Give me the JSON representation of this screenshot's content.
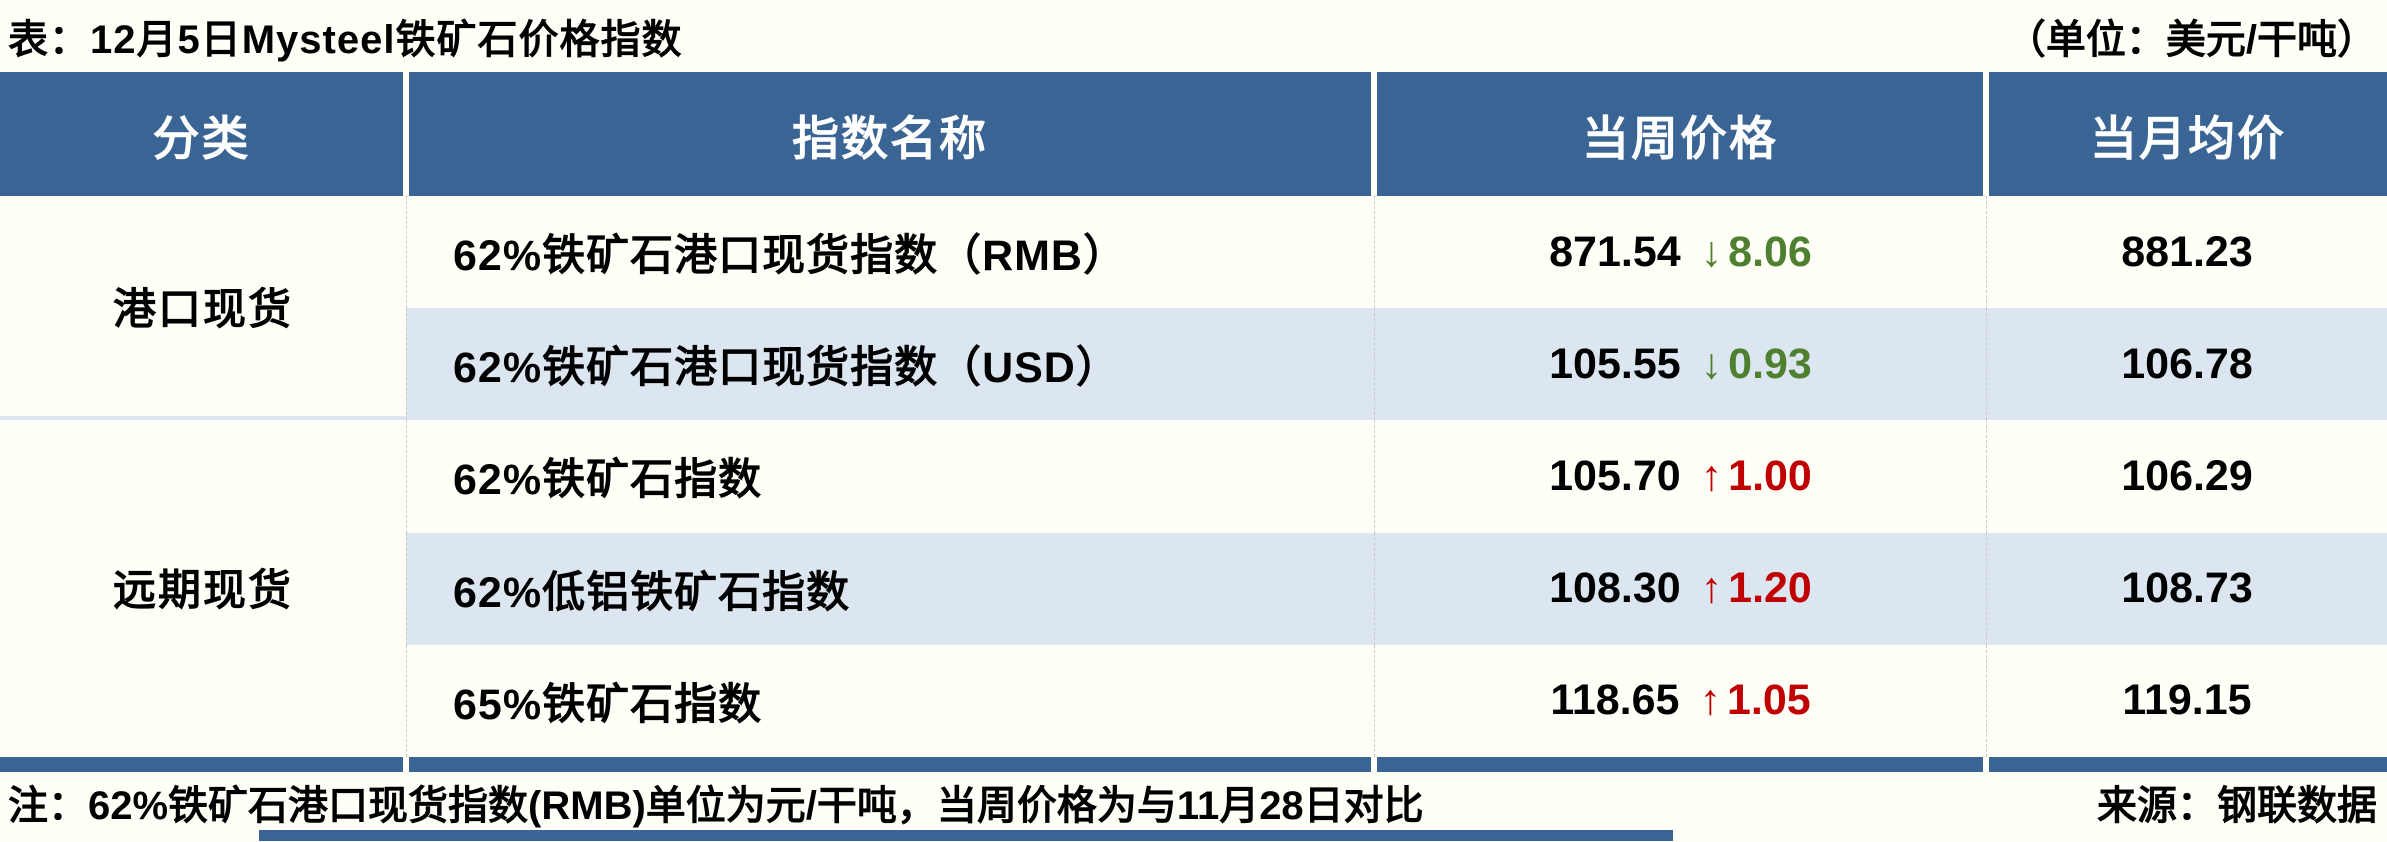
{
  "title": {
    "text": "表：12月5日Mysteel铁矿石价格指数",
    "unit": "（单位：美元/干吨）"
  },
  "table": {
    "headers": [
      "分类",
      "指数名称",
      "当周价格",
      "当月均价"
    ],
    "groups": [
      {
        "category": "港口现货",
        "rows": [
          {
            "name": "62%铁矿石港口现货指数（RMB）",
            "week_price": "871.54",
            "change": "8.06",
            "direction": "down",
            "month_avg": "881.23"
          },
          {
            "name": "62%铁矿石港口现货指数（USD）",
            "week_price": "105.55",
            "change": "0.93",
            "direction": "down",
            "month_avg": "106.78"
          }
        ]
      },
      {
        "category": "远期现货",
        "rows": [
          {
            "name": "62%铁矿石指数",
            "week_price": "105.70",
            "change": "1.00",
            "direction": "up",
            "month_avg": "106.29"
          },
          {
            "name": "62%低铝铁矿石指数",
            "week_price": "108.30",
            "change": "1.20",
            "direction": "up",
            "month_avg": "108.73"
          },
          {
            "name": "65%铁矿石指数",
            "week_price": "118.65",
            "change": "1.05",
            "direction": "up",
            "month_avg": "119.15"
          }
        ]
      }
    ]
  },
  "footer": {
    "note": "注：62%铁矿石港口现货指数(RMB)单位为元/干吨，当周价格为与11月28日对比",
    "source": "来源：钢联数据"
  },
  "icons": {
    "down_arrow": "↓",
    "up_arrow": "↑"
  },
  "colors": {
    "header_blue": "#396493",
    "band_light_blue": "#DCE6F1",
    "up_red": "#C00000",
    "down_green": "#4F8030",
    "background_cream": "#FFFEF7"
  },
  "chart_data": {
    "type": "table",
    "title": "表：12月5日Mysteel铁矿石价格指数",
    "unit": "（单位：美元/干吨）",
    "columns": [
      "分类",
      "指数名称",
      "当周价格",
      "当月均价"
    ],
    "rows": [
      [
        "港口现货",
        "62%铁矿石港口现货指数（RMB）",
        "871.54 ↓8.06",
        "881.23"
      ],
      [
        "港口现货",
        "62%铁矿石港口现货指数（USD）",
        "105.55 ↓0.93",
        "106.78"
      ],
      [
        "远期现货",
        "62%铁矿石指数",
        "105.70 ↑1.00",
        "106.29"
      ],
      [
        "远期现货",
        "62%低铝铁矿石指数",
        "108.30 ↑1.20",
        "108.73"
      ],
      [
        "远期现货",
        "65%铁矿石指数",
        "118.65 ↑1.05",
        "119.15"
      ]
    ],
    "note": "注：62%铁矿石港口现货指数(RMB)单位为元/干吨，当周价格为与11月28日对比",
    "source": "来源：钢联数据"
  }
}
